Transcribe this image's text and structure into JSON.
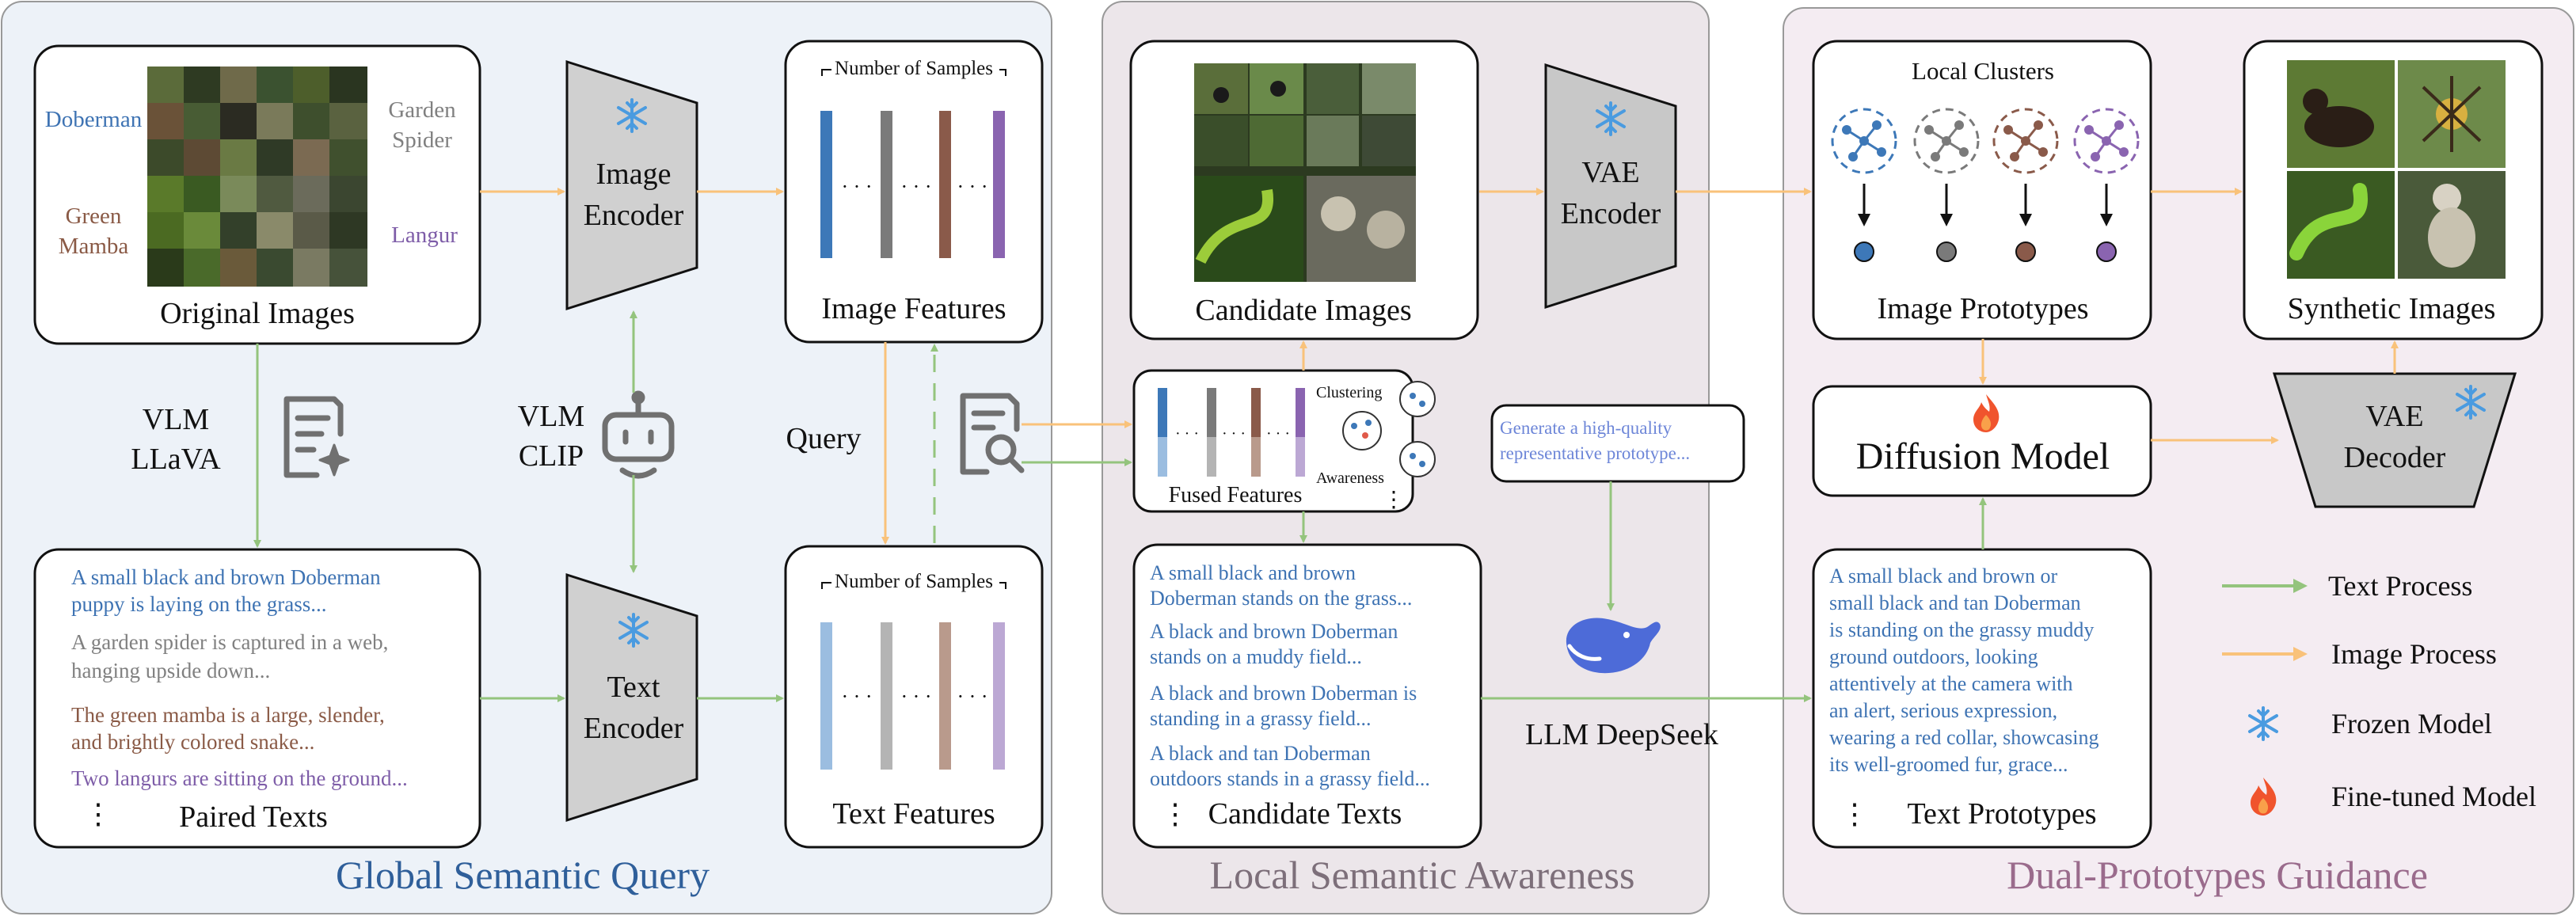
{
  "colors": {
    "text_arrow": "#94c47d",
    "image_arrow": "#f9c27a",
    "panel1_bg": "#edf2f8",
    "panel2_bg": "#ece6ea",
    "panel3_bg": "#f4ecf2",
    "title1": "#2f5f9a",
    "title2": "#7d6f7a",
    "title3": "#9a6b8c",
    "doberman": "#3e73b3",
    "spider": "#808080",
    "mamba": "#8a5a46",
    "langur": "#7e5da8",
    "prompt": "#6d86d8"
  },
  "panels": {
    "global_title": "Global Semantic Query",
    "local_title": "Local Semantic Awareness",
    "dual_title": "Dual-Prototypes Guidance"
  },
  "global": {
    "original_images_label": "Original Images",
    "class_doberman": "Doberman",
    "class_spider_line1": "Garden",
    "class_spider_line2": "Spider",
    "class_mamba_line1": "Green",
    "class_mamba_line2": "Mamba",
    "class_langur": "Langur",
    "image_encoder_line1": "Image",
    "image_encoder_line2": "Encoder",
    "text_encoder_line1": "Text",
    "text_encoder_line2": "Encoder",
    "image_features_label": "Image Features",
    "text_features_label": "Text Features",
    "number_of_samples": "Number of Samples",
    "vlm_llava_line1": "VLM",
    "vlm_llava_line2": "LLaVA",
    "vlm_clip_line1": "VLM",
    "vlm_clip_line2": "CLIP",
    "query_label": "Query",
    "paired_texts_label": "Paired Texts",
    "paired_texts": [
      {
        "line1": "A small black and brown Doberman",
        "line2": "puppy is laying on the grass..."
      },
      {
        "line1": "A garden spider is captured in a web,",
        "line2": "hanging upside down..."
      },
      {
        "line1": "The green mamba is a large, slender,",
        "line2": "and brightly colored snake..."
      },
      {
        "line1": "Two langurs are sitting on the ground...",
        "line2": ""
      }
    ],
    "ellipsis": "⋮",
    "dots": "· · ·"
  },
  "local": {
    "candidate_images_label": "Candidate Images",
    "vae_encoder_line1": "VAE",
    "vae_encoder_line2": "Encoder",
    "fused_features_label": "Fused Features",
    "clustering_label": "Clustering",
    "awareness_label": "Awareness",
    "prompt_line1": "Generate a high-quality",
    "prompt_line2": "representative prototype...",
    "llm_label": "LLM DeepSeek",
    "candidate_texts_label": "Candidate Texts",
    "candidate_texts": [
      {
        "line1": "A small black and brown",
        "line2": "Doberman stands on the grass..."
      },
      {
        "line1": "A black and brown Doberman",
        "line2": "stands on a muddy field..."
      },
      {
        "line1": "A black and brown Doberman is",
        "line2": "standing in a grassy field..."
      },
      {
        "line1": "A black and tan Doberman",
        "line2": "outdoors stands in a grassy field..."
      }
    ]
  },
  "dual": {
    "local_clusters_label": "Local Clusters",
    "image_prototypes_label": "Image Prototypes",
    "synthetic_images_label": "Synthetic Images",
    "diffusion_model_label": "Diffusion Model",
    "vae_decoder_line1": "VAE",
    "vae_decoder_line2": "Decoder",
    "text_prototypes_label": "Text Prototypes",
    "text_prototype_lines": [
      "A small black and brown or",
      "small black and tan Doberman",
      "is standing on the grassy muddy",
      "ground outdoors, looking",
      "attentively at the camera with",
      "an alert, serious expression,",
      "wearing a red collar, showcasing",
      "its well-groomed fur, grace..."
    ],
    "cluster_colors": [
      "#3d78b8",
      "#7a7a7a",
      "#8a5a4a",
      "#8a64b0"
    ]
  },
  "legend": {
    "text_process": "Text Process",
    "image_process": "Image Process",
    "frozen_model": "Frozen Model",
    "fine_tuned_model": "Fine-tuned Model"
  }
}
